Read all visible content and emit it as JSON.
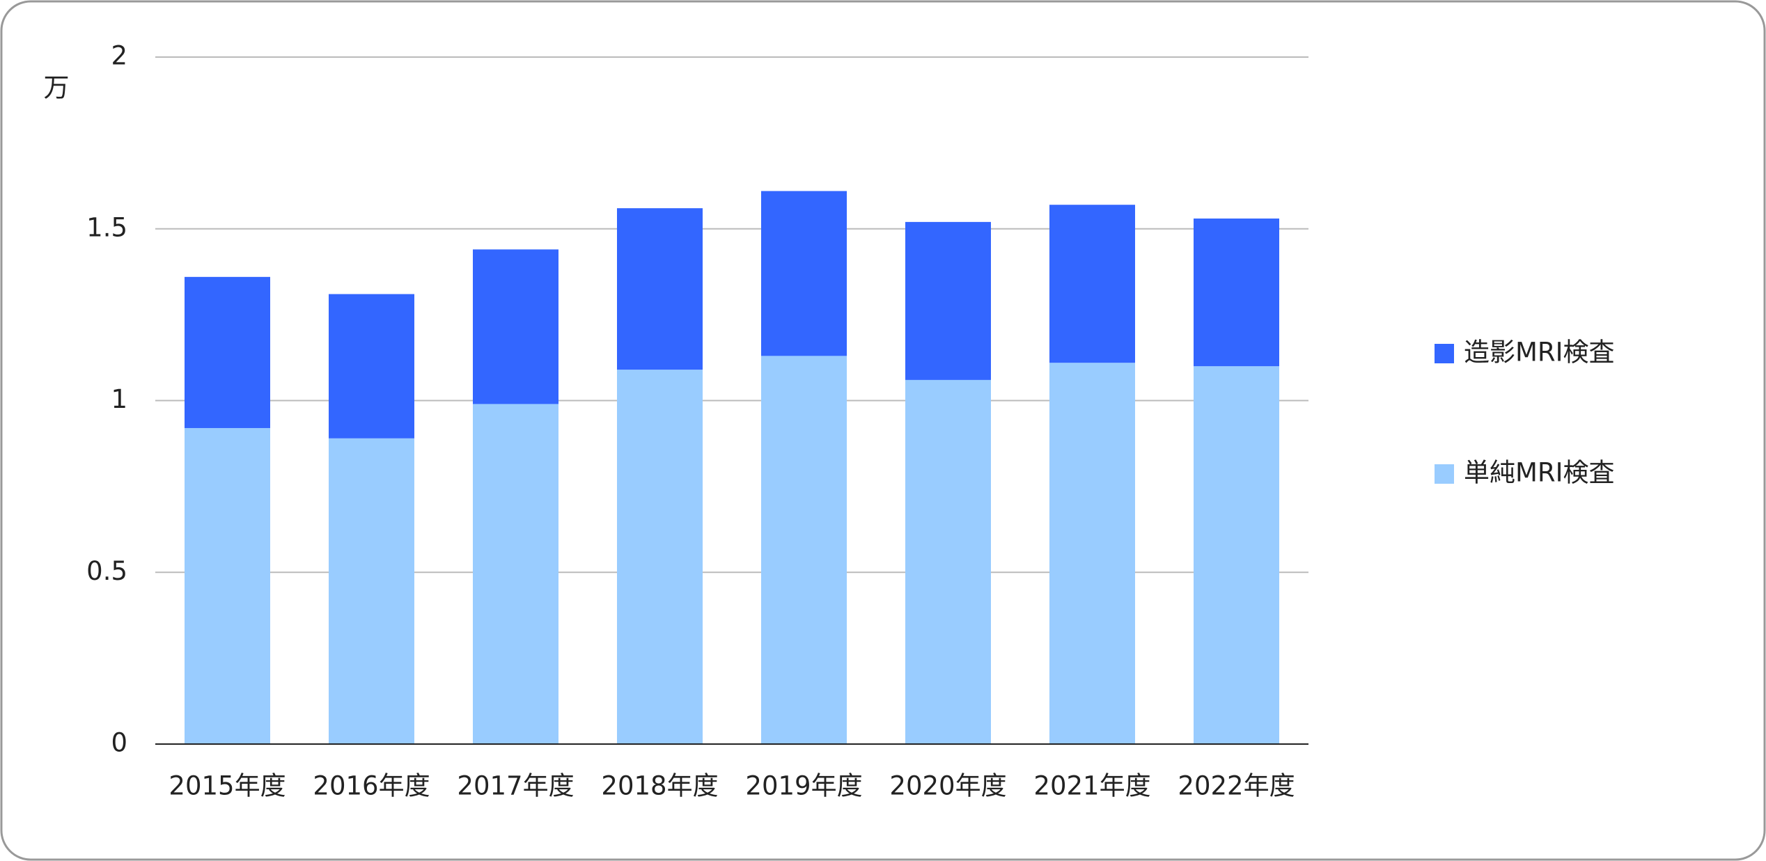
{
  "chart_data": {
    "type": "stacked_bar",
    "y_unit": "万",
    "categories": [
      "2015年度",
      "2016年度",
      "2017年度",
      "2018年度",
      "2019年度",
      "2020年度",
      "2021年度",
      "2022年度"
    ],
    "series": [
      {
        "name": "単純MRI検査",
        "color": "#99ccff",
        "values": [
          0.92,
          0.89,
          0.99,
          1.09,
          1.13,
          1.06,
          1.11,
          1.1
        ]
      },
      {
        "name": "造影MRI検査",
        "color": "#3366ff",
        "values": [
          0.44,
          0.42,
          0.45,
          0.47,
          0.48,
          0.46,
          0.46,
          0.43
        ]
      }
    ],
    "ylim": [
      0,
      2
    ],
    "yticks": [
      0,
      0.5,
      1,
      1.5,
      2
    ],
    "grid": true,
    "legend": "right"
  }
}
